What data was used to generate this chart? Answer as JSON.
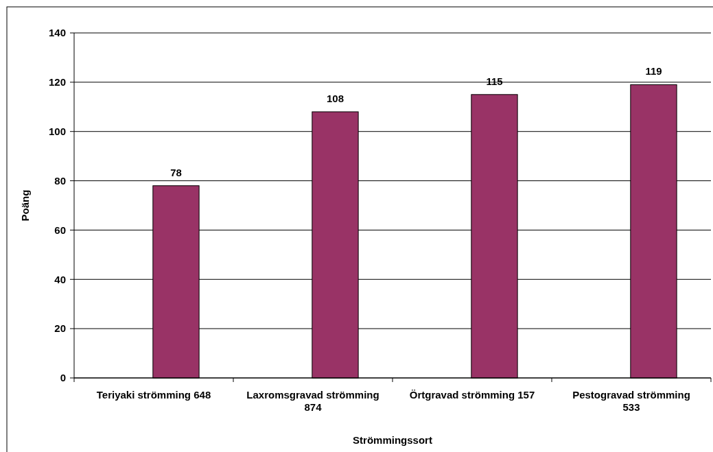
{
  "chart_data": {
    "type": "bar",
    "xlabel": "Strömmingssort",
    "ylabel": "Poäng",
    "categories": [
      "Teriyaki strömming 648",
      "Laxromsgravad strömming 874",
      "Örtgravad strömming 157",
      "Pestogravad strömming 533"
    ],
    "values": [
      78,
      108,
      115,
      119
    ],
    "color": "#993366",
    "ylim": [
      0,
      140
    ],
    "yticks": [
      0,
      20,
      40,
      60,
      80,
      100,
      120,
      140
    ],
    "grid": "y",
    "data_labels": true
  }
}
